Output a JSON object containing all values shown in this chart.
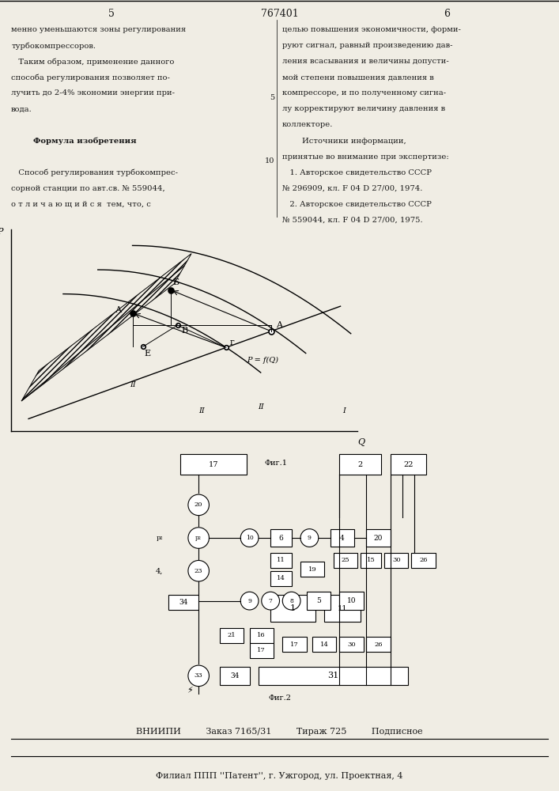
{
  "title_num": "767401",
  "page_left": "5",
  "page_right": "6",
  "bg_color": "#f0ede4",
  "text_color": "#1a1a1a",
  "left_col_lines": [
    "менно уменьшаются зоны регулирования",
    "турбокомпрессоров.",
    "   Таким образом, применение данного",
    "способа регулирования позволяет по-",
    "лучить до 2-4% экономии энергии при-",
    "вода.",
    "",
    "        Формула изобретения",
    "",
    "   Способ регулирования турбокомпрес-",
    "сорной станции по авт.св. № 559044,",
    "о т л и ч а ю щ и й с я  тем, что, с"
  ],
  "right_col_lines": [
    "целью повышения экономичности, форми-",
    "руют сигнал, равный произведению дав-",
    "ления всасывания и величины допусти-",
    "мой степени повышения давления в",
    "компрессоре, и по полученному сигна-",
    "лу корректируют величину давления в",
    "коллекторе.",
    "        Источники информации,",
    "принятые во внимание при экспертизе:",
    "   1. Авторское свидетельство СССР",
    "№ 296909, кл. F 04 D 27/00, 1974.",
    "   2. Авторское свидетельство СССР",
    "№ 559044, кл. F 04 D 27/00, 1975."
  ],
  "line_num_5_row": 5,
  "line_num_10_row": 9,
  "fig1_label": "Фиг.1",
  "fig2_label": "Фиг.2",
  "footer_line1": "ВНИИПИ         Заказ 7165/31         Тираж 725         Подписное",
  "footer_line2": "Филиал ППП ''Патент'', г. Ужгород, ул. Проектная, 4"
}
